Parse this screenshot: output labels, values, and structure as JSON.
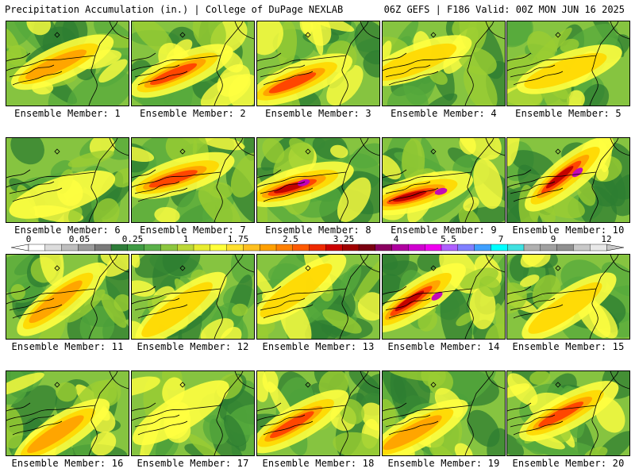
{
  "header": {
    "left": "Precipitation Accumulation (in.) | College of DuPage NEXLAB",
    "right": "06Z GEFS | F186 Valid: 00Z MON JUN 16 2025"
  },
  "colorbar": {
    "tick_labels": [
      "0",
      "0.05",
      "0.25",
      "1",
      "1.75",
      "2.5",
      "3.25",
      "4",
      "5.5",
      "7",
      "9",
      "12"
    ],
    "colors": [
      "#ffffff",
      "#dcdcdc",
      "#bebebe",
      "#9a9a9a",
      "#7a7a7a",
      "#2f7d3a",
      "#3f9a44",
      "#5ab04a",
      "#8cc640",
      "#bcd838",
      "#e8ec30",
      "#ffff3a",
      "#ffe030",
      "#ffc020",
      "#ffa000",
      "#ff8000",
      "#ff5a00",
      "#ee2a00",
      "#cc0000",
      "#a00000",
      "#7a0010",
      "#8a0060",
      "#b000a0",
      "#d000d0",
      "#f000f0",
      "#b060ff",
      "#8080ff",
      "#40a0ff",
      "#00ffff",
      "#40e0e0",
      "#b0b0b0",
      "#a0a0a0",
      "#909090",
      "#c8c8c8",
      "#e8e8e8"
    ]
  },
  "panels": [
    {
      "label": "Ensemble Member: 1",
      "intensity": 2
    },
    {
      "label": "Ensemble Member: 2",
      "intensity": 3
    },
    {
      "label": "Ensemble Member: 3",
      "intensity": 3
    },
    {
      "label": "Ensemble Member: 4",
      "intensity": 1
    },
    {
      "label": "Ensemble Member: 5",
      "intensity": 1
    },
    {
      "label": "Ensemble Member: 6",
      "intensity": 0
    },
    {
      "label": "Ensemble Member: 7",
      "intensity": 3
    },
    {
      "label": "Ensemble Member: 8",
      "intensity": 4
    },
    {
      "label": "Ensemble Member: 9",
      "intensity": 4
    },
    {
      "label": "Ensemble Member: 10",
      "intensity": 4
    },
    {
      "label": "Ensemble Member: 11",
      "intensity": 2
    },
    {
      "label": "Ensemble Member: 12",
      "intensity": 1
    },
    {
      "label": "Ensemble Member: 13",
      "intensity": 1
    },
    {
      "label": "Ensemble Member: 14",
      "intensity": 4
    },
    {
      "label": "Ensemble Member: 15",
      "intensity": 1
    },
    {
      "label": "Ensemble Member: 16",
      "intensity": 2
    },
    {
      "label": "Ensemble Member: 17",
      "intensity": 0
    },
    {
      "label": "Ensemble Member: 18",
      "intensity": 3
    },
    {
      "label": "Ensemble Member: 19",
      "intensity": 2
    },
    {
      "label": "Ensemble Member: 20",
      "intensity": 3
    }
  ]
}
